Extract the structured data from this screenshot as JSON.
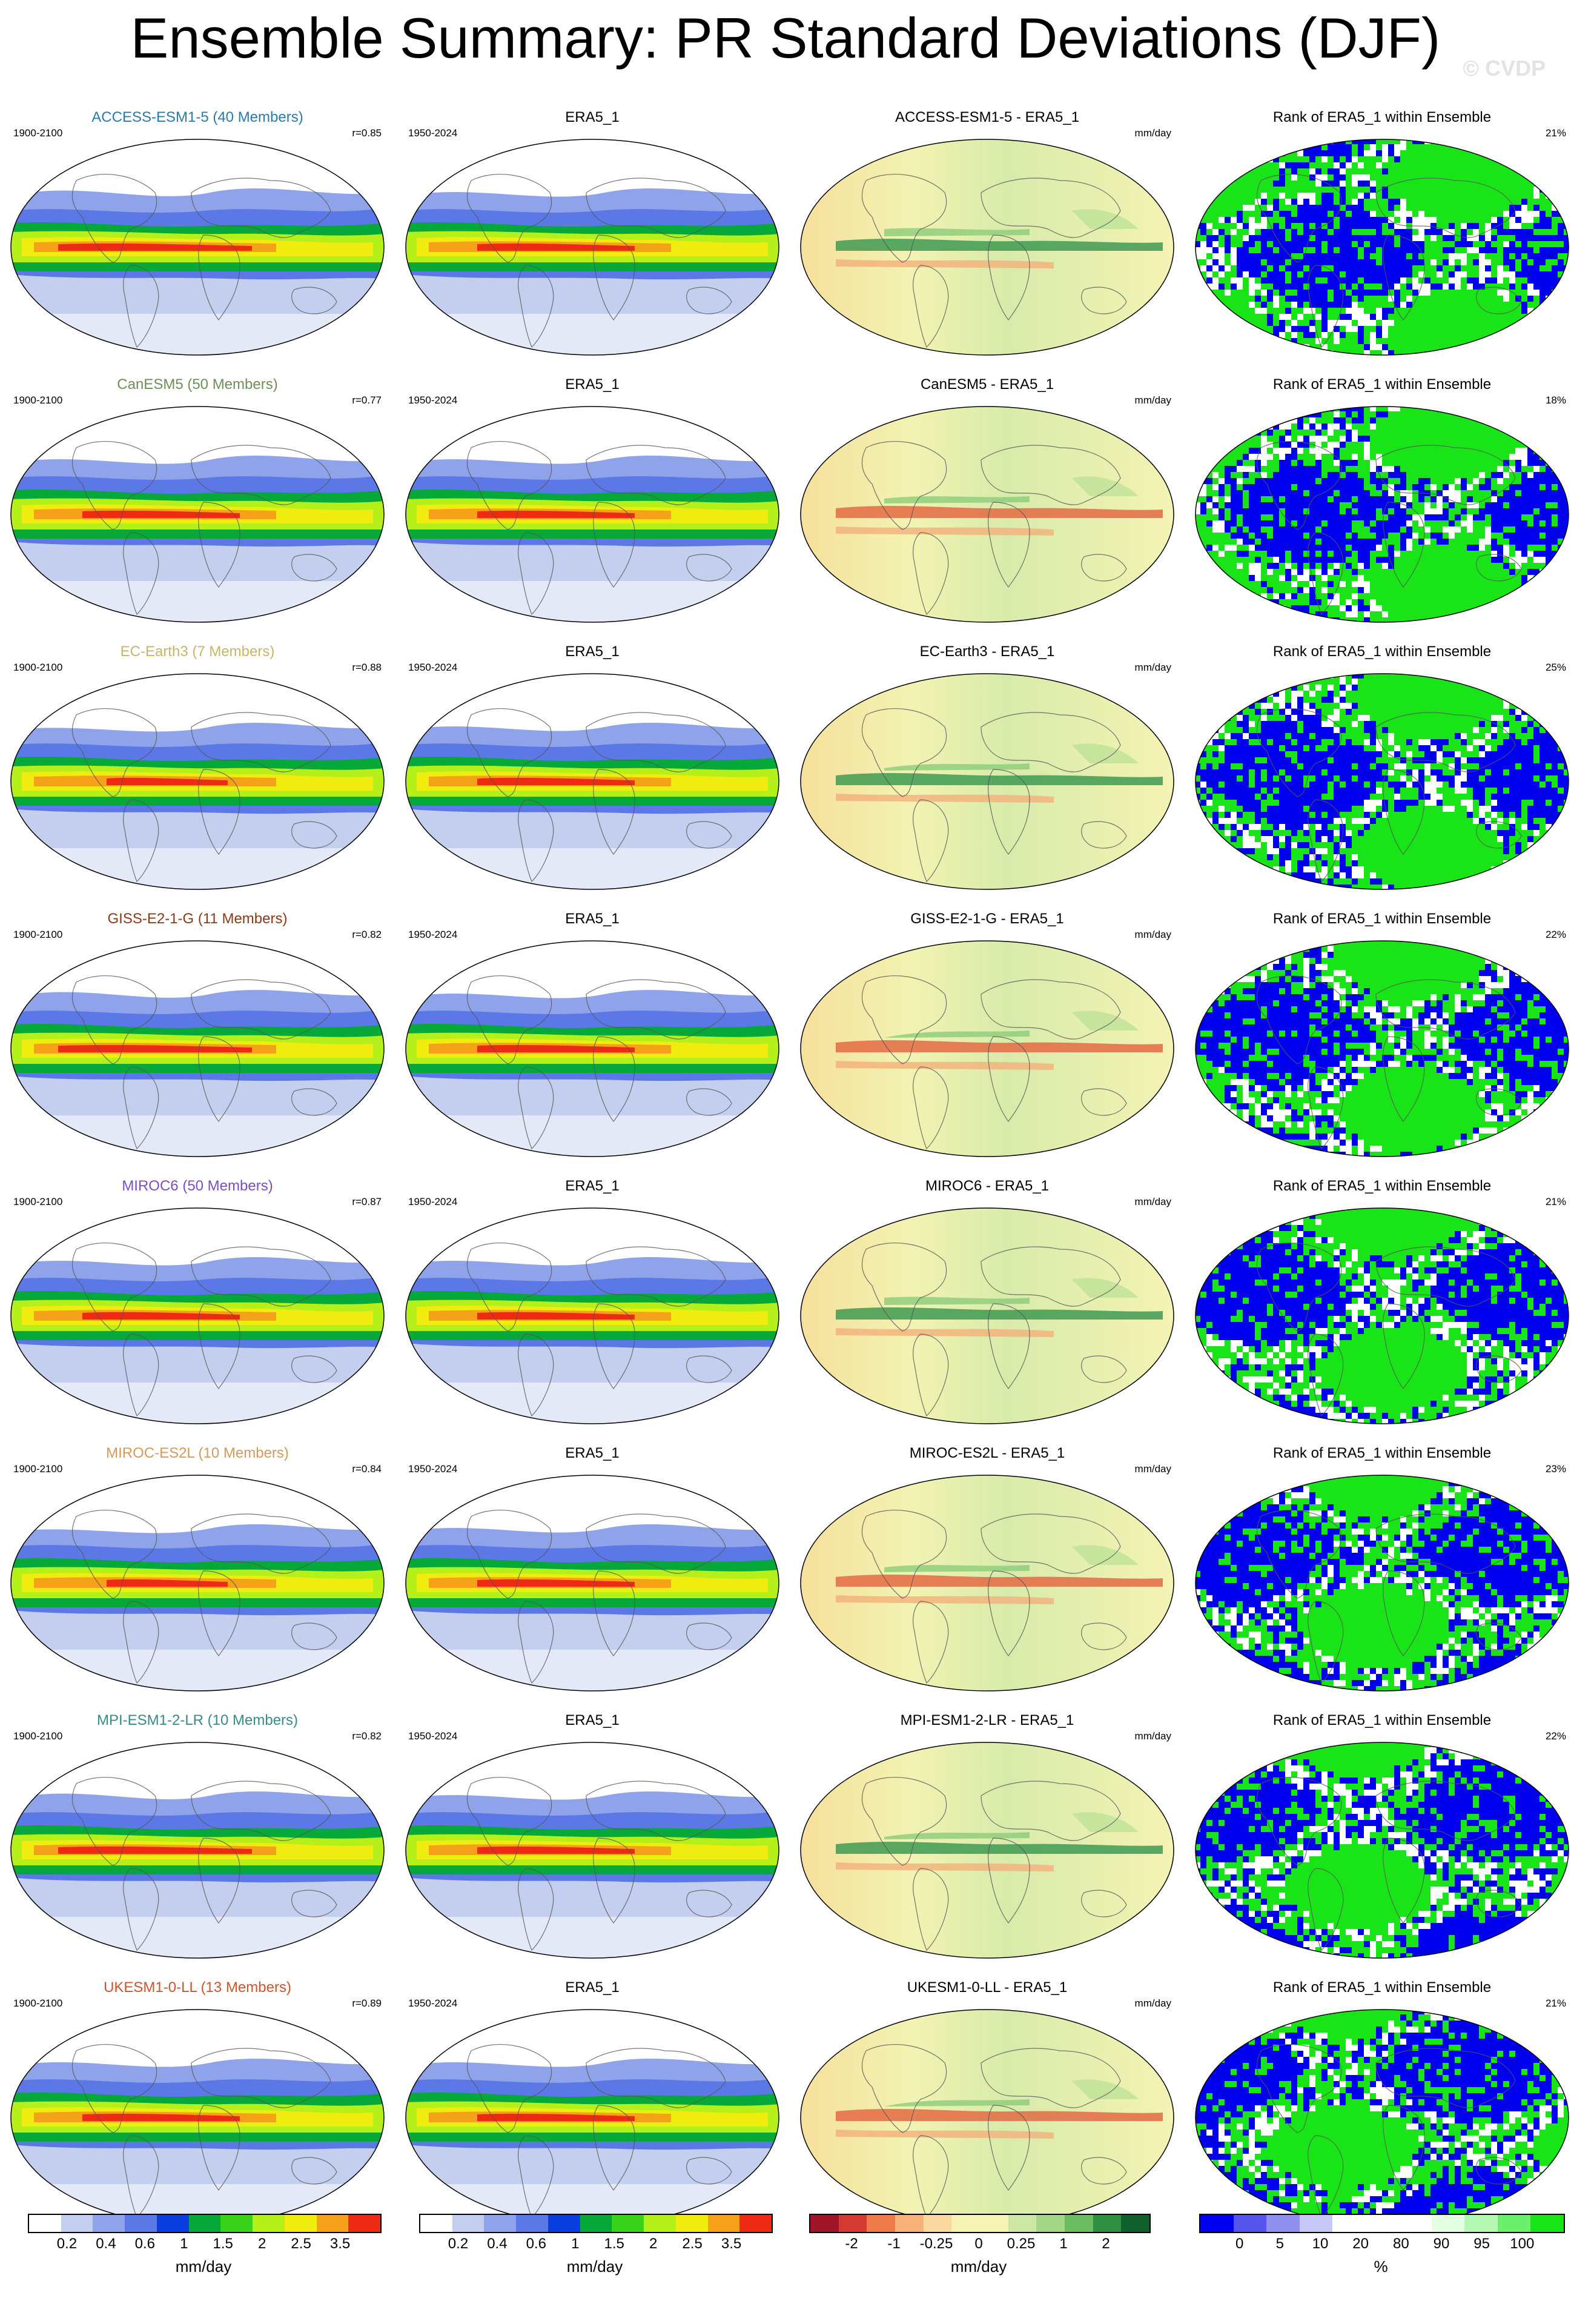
{
  "title": "Ensemble Summary: PR Standard Deviations (DJF)",
  "watermark": "© CVDP",
  "rows": [
    {
      "model": "ACCESS-ESM1-5 (40 Members)",
      "model_color": "#2a7ab0",
      "diff_title": "ACCESS-ESM1-5 - ERA5_1",
      "r": "r=0.85",
      "rank_pct": "21%"
    },
    {
      "model": "CanESM5 (50 Members)",
      "model_color": "#6e8f57",
      "diff_title": "CanESM5 - ERA5_1",
      "r": "r=0.77",
      "rank_pct": "18%"
    },
    {
      "model": "EC-Earth3 (7 Members)",
      "model_color": "#c7b56a",
      "diff_title": "EC-Earth3 - ERA5_1",
      "r": "r=0.88",
      "rank_pct": "25%"
    },
    {
      "model": "GISS-E2-1-G (11 Members)",
      "model_color": "#8a3a1a",
      "diff_title": "GISS-E2-1-G - ERA5_1",
      "r": "r=0.82",
      "rank_pct": "22%"
    },
    {
      "model": "MIROC6 (50 Members)",
      "model_color": "#7b4fc0",
      "diff_title": "MIROC6 - ERA5_1",
      "r": "r=0.87",
      "rank_pct": "21%"
    },
    {
      "model": "MIROC-ES2L (10 Members)",
      "model_color": "#d49a5a",
      "diff_title": "MIROC-ES2L - ERA5_1",
      "r": "r=0.84",
      "rank_pct": "23%"
    },
    {
      "model": "MPI-ESM1-2-LR (10 Members)",
      "model_color": "#3a8a8a",
      "diff_title": "MPI-ESM1-2-LR - ERA5_1",
      "r": "r=0.82",
      "rank_pct": "22%"
    },
    {
      "model": "UKESM1-0-LL (13 Members)",
      "model_color": "#d0542a",
      "diff_title": "UKESM1-0-LL - ERA5_1",
      "r": "r=0.89",
      "rank_pct": "21%"
    }
  ],
  "common": {
    "model_years": "1900-2100",
    "obs_years": "1950-2024",
    "obs_title": "ERA5_1",
    "diff_units": "mm/day",
    "rank_title": "Rank of ERA5_1 within Ensemble"
  },
  "colorbars": [
    {
      "id": "std",
      "unit": "mm/day",
      "ticks": [
        "0.2",
        "0.4",
        "0.6",
        "1",
        "1.5",
        "2",
        "2.5",
        "3.5"
      ],
      "colors": [
        "#ffffff",
        "#c4ceef",
        "#8fa3ea",
        "#5b78e6",
        "#0a3ddf",
        "#06a83a",
        "#38d21a",
        "#b6f01a",
        "#f0ec10",
        "#f5a21a",
        "#ee2a14"
      ]
    },
    {
      "id": "std_obs",
      "unit": "mm/day",
      "ticks": [
        "0.2",
        "0.4",
        "0.6",
        "1",
        "1.5",
        "2",
        "2.5",
        "3.5"
      ],
      "colors": [
        "#ffffff",
        "#c4ceef",
        "#8fa3ea",
        "#5b78e6",
        "#0a3ddf",
        "#06a83a",
        "#38d21a",
        "#b6f01a",
        "#f0ec10",
        "#f5a21a",
        "#ee2a14"
      ]
    },
    {
      "id": "diff",
      "unit": "mm/day",
      "ticks": [
        "-2",
        "-1",
        "-0.25",
        "0",
        "0.25",
        "1",
        "2"
      ],
      "colors": [
        "#a01428",
        "#d43a32",
        "#ef7a4a",
        "#f7b27a",
        "#f9d9a0",
        "#f5f3b4",
        "#f5f3b4",
        "#cde8a4",
        "#a4d688",
        "#6cbc62",
        "#2e8f42",
        "#125f2e"
      ]
    },
    {
      "id": "rank",
      "unit": "%",
      "ticks": [
        "0",
        "5",
        "10",
        "20",
        "80",
        "90",
        "95",
        "100"
      ],
      "colors": [
        "#0000ee",
        "#5555ee",
        "#9090ee",
        "#c8c8f6",
        "#ffffff",
        "#ffffff",
        "#ffffff",
        "#e4ffe4",
        "#b4f8b4",
        "#6cf06c",
        "#18e418"
      ]
    }
  ]
}
